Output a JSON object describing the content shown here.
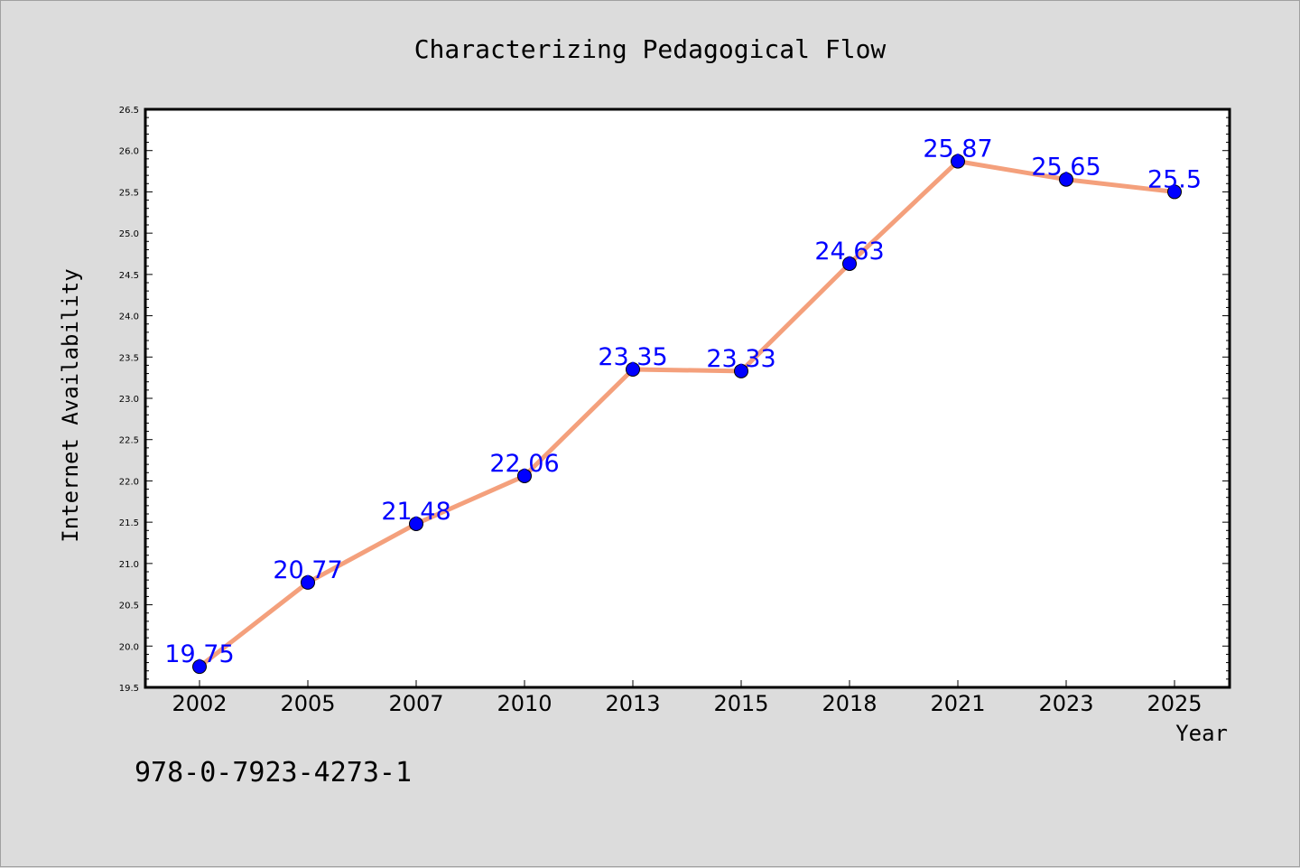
{
  "chart_data": {
    "type": "line",
    "title": "Characterizing Pedagogical Flow",
    "xlabel": "Year",
    "ylabel": "Internet Availability",
    "categories": [
      "2002",
      "2005",
      "2007",
      "2010",
      "2013",
      "2015",
      "2018",
      "2021",
      "2023",
      "2025"
    ],
    "series": [
      {
        "values": [
          19.75,
          20.77,
          21.48,
          22.06,
          23.35,
          23.33,
          24.63,
          25.87,
          25.65,
          25.5
        ],
        "labels": [
          "19.75",
          "20.77",
          "21.48",
          "22.06",
          "23.35",
          "23.33",
          "24.63",
          "25.87",
          "25.65",
          "25.5"
        ],
        "line_color": "#f4a07c",
        "marker_color": "#0000ff"
      }
    ],
    "ylim": [
      19.5,
      26.5
    ],
    "yticks": [
      "19.5",
      "20.0",
      "20.5",
      "21.0",
      "21.5",
      "22.0",
      "22.5",
      "23.0",
      "23.5",
      "24.0",
      "24.5",
      "25.0",
      "25.5",
      "26.0",
      "26.5"
    ],
    "grid": false,
    "legend": false,
    "colors": {
      "background": "#dcdcdc",
      "plot_background": "#ffffff",
      "data_label": "#0000ff"
    }
  },
  "footer": {
    "isbn": "978-0-7923-4273-1"
  }
}
